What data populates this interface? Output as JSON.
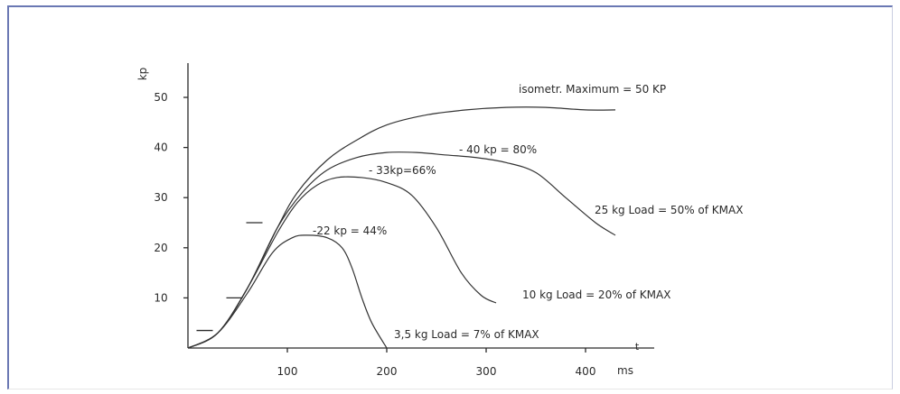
{
  "chart_data": {
    "type": "line",
    "xlabel": "ms",
    "x_axis_symbol": "t",
    "ylabel": "kp",
    "x_ticks": [
      "100",
      "200",
      "300",
      "400"
    ],
    "y_ticks": [
      "10",
      "20",
      "30",
      "40",
      "50"
    ],
    "xlim": [
      0,
      460
    ],
    "ylim": [
      0,
      55
    ],
    "grid": false,
    "series": [
      {
        "label": "isometr. Maximum  =   50 KP",
        "x": [
          0,
          30,
          60,
          90,
          110,
          140,
          170,
          200,
          240,
          280,
          320,
          360,
          400,
          430
        ],
        "y": [
          0,
          3,
          12,
          24,
          31,
          37.5,
          41.5,
          44.5,
          46.5,
          47.5,
          48,
          48,
          47.5,
          47.5
        ]
      },
      {
        "label": "25 kg Load = 50% of KMAX",
        "peak_label": "- 40 kp = 80%",
        "x": [
          0,
          30,
          60,
          90,
          115,
          140,
          170,
          200,
          230,
          260,
          290,
          320,
          350,
          380,
          410,
          430
        ],
        "y": [
          0,
          3,
          12,
          24,
          31,
          35.5,
          38,
          39,
          39,
          38.5,
          38,
          37,
          35,
          30,
          25,
          22.5
        ]
      },
      {
        "label": "10 kg Load = 20% of KMAX",
        "peak_label": "- 33kp=66%",
        "x": [
          0,
          30,
          60,
          90,
          110,
          130,
          150,
          175,
          200,
          225,
          250,
          275,
          295,
          310
        ],
        "y": [
          0,
          3,
          12,
          23,
          29,
          32.5,
          34,
          34,
          33,
          30.5,
          24,
          15,
          10.5,
          9
        ]
      },
      {
        "label": "3,5 kg Load  =  7% of KMAX",
        "peak_label": "-22 kp = 44%",
        "x": [
          0,
          30,
          60,
          85,
          105,
          120,
          140,
          155,
          165,
          175,
          185,
          200
        ],
        "y": [
          0,
          3,
          11,
          19,
          22,
          22.5,
          22,
          20,
          16,
          10,
          5,
          0
        ]
      }
    ],
    "threshold_marks": [
      {
        "x": 25,
        "y": 3.5
      },
      {
        "x": 55,
        "y": 10
      },
      {
        "x": 75,
        "y": 25
      }
    ]
  }
}
